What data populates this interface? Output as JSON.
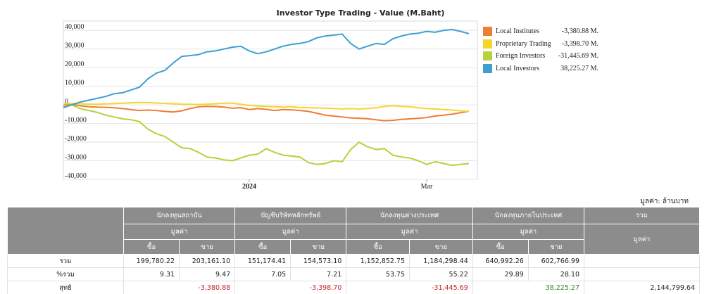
{
  "chart_data": {
    "type": "line",
    "title": "Investor Type Trading - Value (M.Baht)",
    "ylim": [
      -40000,
      45000
    ],
    "yticks": [
      "40,000",
      "30,000",
      "20,000",
      "10,000",
      "0",
      "-10,000",
      "-20,000",
      "-30,000",
      "-40,000"
    ],
    "ytick_values": [
      40000,
      30000,
      20000,
      10000,
      0,
      -10000,
      -20000,
      -30000,
      -40000
    ],
    "xlim": [
      0,
      49
    ],
    "xticks": [
      {
        "label": "2024",
        "x": 22
      },
      {
        "label": "Mar",
        "x": 43
      }
    ],
    "grid": "horizontal",
    "legend": "right",
    "series": [
      {
        "name": "Local Institutes",
        "value_label": "-3,380.88 M.",
        "color": "#ee7e34",
        "values": [
          0,
          300,
          -500,
          -1000,
          -1200,
          -1300,
          -1500,
          -2000,
          -2500,
          -3000,
          -2800,
          -3000,
          -3500,
          -3800,
          -3200,
          -2000,
          -1000,
          -800,
          -900,
          -1200,
          -1800,
          -1500,
          -2500,
          -2000,
          -2400,
          -3000,
          -2500,
          -2700,
          -3000,
          -3500,
          -4500,
          -5500,
          -6000,
          -6500,
          -7000,
          -7200,
          -7400,
          -8000,
          -8500,
          -8300,
          -7800,
          -7500,
          -7200,
          -6800,
          -6000,
          -5500,
          -5000,
          -4200,
          -3380.88
        ]
      },
      {
        "name": "Proprietary Trading",
        "value_label": "-3,398.70 M.",
        "color": "#f7d42a",
        "values": [
          500,
          800,
          600,
          400,
          300,
          500,
          700,
          900,
          1100,
          1300,
          1200,
          1000,
          800,
          600,
          400,
          300,
          200,
          400,
          600,
          900,
          1000,
          300,
          -300,
          -600,
          -800,
          -1000,
          -1200,
          -1000,
          -1300,
          -1500,
          -1600,
          -1800,
          -2000,
          -2200,
          -2000,
          -2200,
          -2000,
          -1500,
          -800,
          -400,
          -800,
          -1000,
          -1500,
          -2000,
          -2200,
          -2500,
          -2800,
          -3200,
          -3398.7
        ]
      },
      {
        "name": "Foreign Investors",
        "value_label": "-31,445.69 M.",
        "color": "#b5d23b",
        "values": [
          -1000,
          0,
          -2000,
          -3000,
          -4000,
          -5500,
          -6500,
          -7500,
          -8000,
          -9000,
          -13000,
          -15500,
          -17000,
          -20000,
          -23000,
          -23500,
          -25500,
          -28000,
          -28500,
          -29500,
          -30000,
          -28500,
          -27000,
          -26500,
          -23500,
          -25500,
          -27000,
          -27500,
          -28000,
          -31000,
          -32000,
          -31500,
          -30000,
          -30500,
          -24000,
          -20000,
          -22500,
          -24000,
          -23500,
          -27000,
          -28000,
          -28500,
          -30000,
          -32000,
          -30500,
          -31500,
          -32500,
          -32000,
          -31445.69
        ]
      },
      {
        "name": "Local Investors",
        "value_label": "38,225.27 M.",
        "color": "#3ca0d2",
        "values": [
          -1500,
          0,
          1500,
          2500,
          3500,
          4500,
          6000,
          6500,
          8000,
          9500,
          14000,
          17000,
          18500,
          22500,
          26000,
          26500,
          27000,
          28500,
          29000,
          30000,
          31000,
          31500,
          29000,
          27500,
          28500,
          30000,
          31500,
          32500,
          33000,
          34000,
          36000,
          37000,
          37500,
          38000,
          33000,
          30000,
          31500,
          33000,
          32500,
          35500,
          37000,
          38000,
          38500,
          39500,
          39000,
          40000,
          40500,
          39500,
          38225.27
        ]
      }
    ]
  },
  "unit_note": "มูลค่า: ล้านบาท",
  "table": {
    "groups": [
      "นักลงทุนสถาบัน",
      "บัญชีบริษัทหลักทรัพย์",
      "นักลงทุนต่างประเทศ",
      "นักลงทุนภายในประเทศ"
    ],
    "total_header": "รวม",
    "value_header": "มูลค่า",
    "buy_label": "ซื้อ",
    "sell_label": "ขาย",
    "rows": {
      "total": {
        "label": "รวม",
        "values": [
          "199,780.22",
          "203,161.10",
          "151,174.41",
          "154,573.10",
          "1,152,852.75",
          "1,184,298.44",
          "640,992.26",
          "602,766.99"
        ]
      },
      "percent": {
        "label": "%รวม",
        "values": [
          "9.31",
          "9.47",
          "7.05",
          "7.21",
          "53.75",
          "55.22",
          "29.89",
          "28.10"
        ]
      },
      "net": {
        "label": "สุทธิ",
        "values": [
          "-3,380.88",
          "-3,398.70",
          "-31,445.69",
          "38,225.27"
        ],
        "grand_total": "2,144,799.64"
      }
    }
  }
}
